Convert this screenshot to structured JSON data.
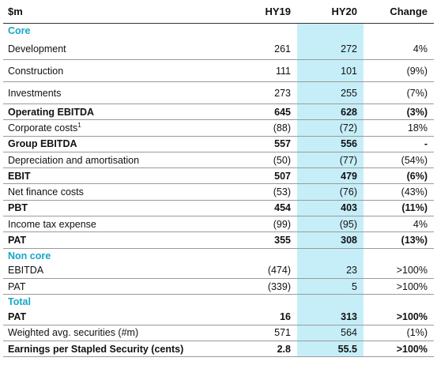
{
  "header": {
    "label": "$m",
    "hy19": "HY19",
    "hy20": "HY20",
    "change": "Change"
  },
  "rows": [
    {
      "section": "Core"
    },
    {
      "label": "Development",
      "hy19": "261",
      "hy20": "272",
      "change": "4%",
      "tall": true
    },
    {
      "label": "Construction",
      "hy19": "111",
      "hy20": "101",
      "change": "(9%)",
      "tall": true
    },
    {
      "label": "Investments",
      "hy19": "273",
      "hy20": "255",
      "change": "(7%)",
      "tall": true
    },
    {
      "label": "Operating EBITDA",
      "hy19": "645",
      "hy20": "628",
      "change": "(3%)",
      "bold": true
    },
    {
      "label": "Corporate costs",
      "note": "1",
      "hy19": "(88)",
      "hy20": "(72)",
      "change": "18%"
    },
    {
      "label": "Group EBITDA",
      "hy19": "557",
      "hy20": "556",
      "change": "-",
      "bold": true
    },
    {
      "label": "Depreciation and amortisation",
      "hy19": "(50)",
      "hy20": "(77)",
      "change": "(54%)"
    },
    {
      "label": "EBIT",
      "hy19": "507",
      "hy20": "479",
      "change": "(6%)",
      "bold": true
    },
    {
      "label": "Net finance costs",
      "hy19": "(53)",
      "hy20": "(76)",
      "change": "(43%)"
    },
    {
      "label": "PBT",
      "hy19": "454",
      "hy20": "403",
      "change": "(11%)",
      "bold": true
    },
    {
      "label": "Income tax expense",
      "hy19": "(99)",
      "hy20": "(95)",
      "change": "4%"
    },
    {
      "label": "PAT",
      "hy19": "355",
      "hy20": "308",
      "change": "(13%)",
      "bold": true
    },
    {
      "section": "Non core"
    },
    {
      "label": "EBITDA",
      "hy19": "(474)",
      "hy20": "23",
      "change": ">100%"
    },
    {
      "label": "PAT",
      "hy19": "(339)",
      "hy20": "5",
      "change": ">100%"
    },
    {
      "section": "Total"
    },
    {
      "label": "PAT",
      "hy19": "16",
      "hy20": "313",
      "change": ">100%",
      "bold": true
    },
    {
      "label": "Weighted avg. securities (#m)",
      "hy19": "571",
      "hy20": "564",
      "change": "(1%)"
    },
    {
      "label": "Earnings per Stapled Security (cents)",
      "hy19": "2.8",
      "hy20": "55.5",
      "change": ">100%",
      "bold": true
    }
  ]
}
